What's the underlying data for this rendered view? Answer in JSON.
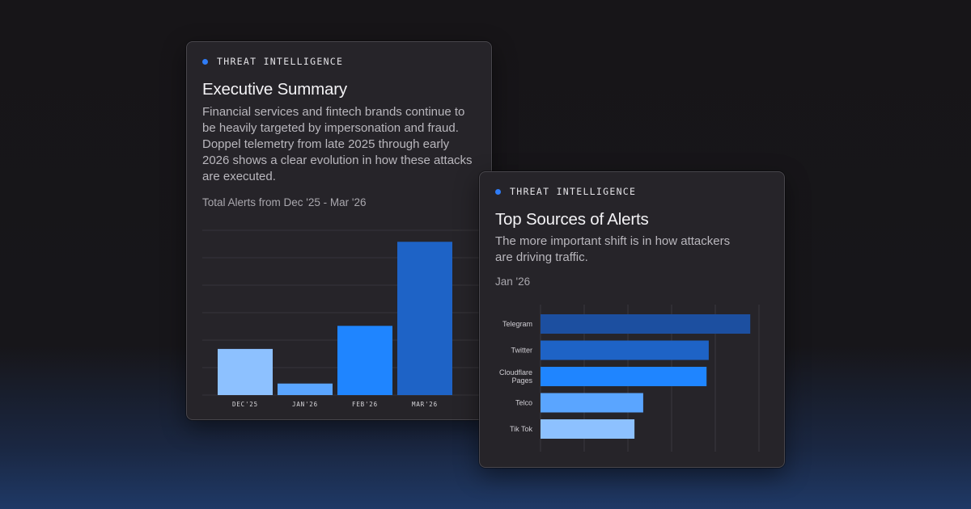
{
  "card1": {
    "eyebrow": "THREAT INTELLIGENCE",
    "title": "Executive Summary",
    "description": "Financial services and fintech brands continue to be heavily targeted by impersonation and fraud. Doppel telemetry from late 2025 through early 2026 shows a clear evolution in how these attacks are executed.",
    "chart_subtitle": "Total Alerts from Dec '25 - Mar '26"
  },
  "card2": {
    "eyebrow": "THREAT INTELLIGENCE",
    "title": "Top Sources of Alerts",
    "description": "The more important shift is in how attackers are driving traffic.",
    "chart_subtitle": "Jan '26"
  },
  "colors": {
    "accent": "#2f7cf6",
    "bar_light": "#8dc1ff",
    "bar_mid": "#5aa5ff",
    "bar_bright": "#1f85ff",
    "bar_dark": "#1e63c6",
    "bar_darkest": "#1c4fa0"
  },
  "chart_data": [
    {
      "type": "bar",
      "title": "Total Alerts from Dec '25 - Mar '26",
      "categories": [
        "DEC'25",
        "JAN'26",
        "FEB'26",
        "MAR'26"
      ],
      "values": [
        28,
        7,
        42,
        93
      ],
      "ylim": [
        0,
        100
      ],
      "grid": true,
      "colors": [
        "#8dc1ff",
        "#5aa5ff",
        "#1f85ff",
        "#1e63c6"
      ]
    },
    {
      "type": "bar",
      "orientation": "horizontal",
      "title": "Jan '26",
      "categories": [
        "Telegram",
        "Twitter",
        "Cloudflare Pages",
        "Telco",
        "Tik Tok"
      ],
      "values": [
        96,
        77,
        76,
        47,
        43
      ],
      "xlim": [
        0,
        100
      ],
      "grid": true,
      "colors": [
        "#1c4fa0",
        "#1e63c6",
        "#1f85ff",
        "#5aa5ff",
        "#8dc1ff"
      ]
    }
  ]
}
